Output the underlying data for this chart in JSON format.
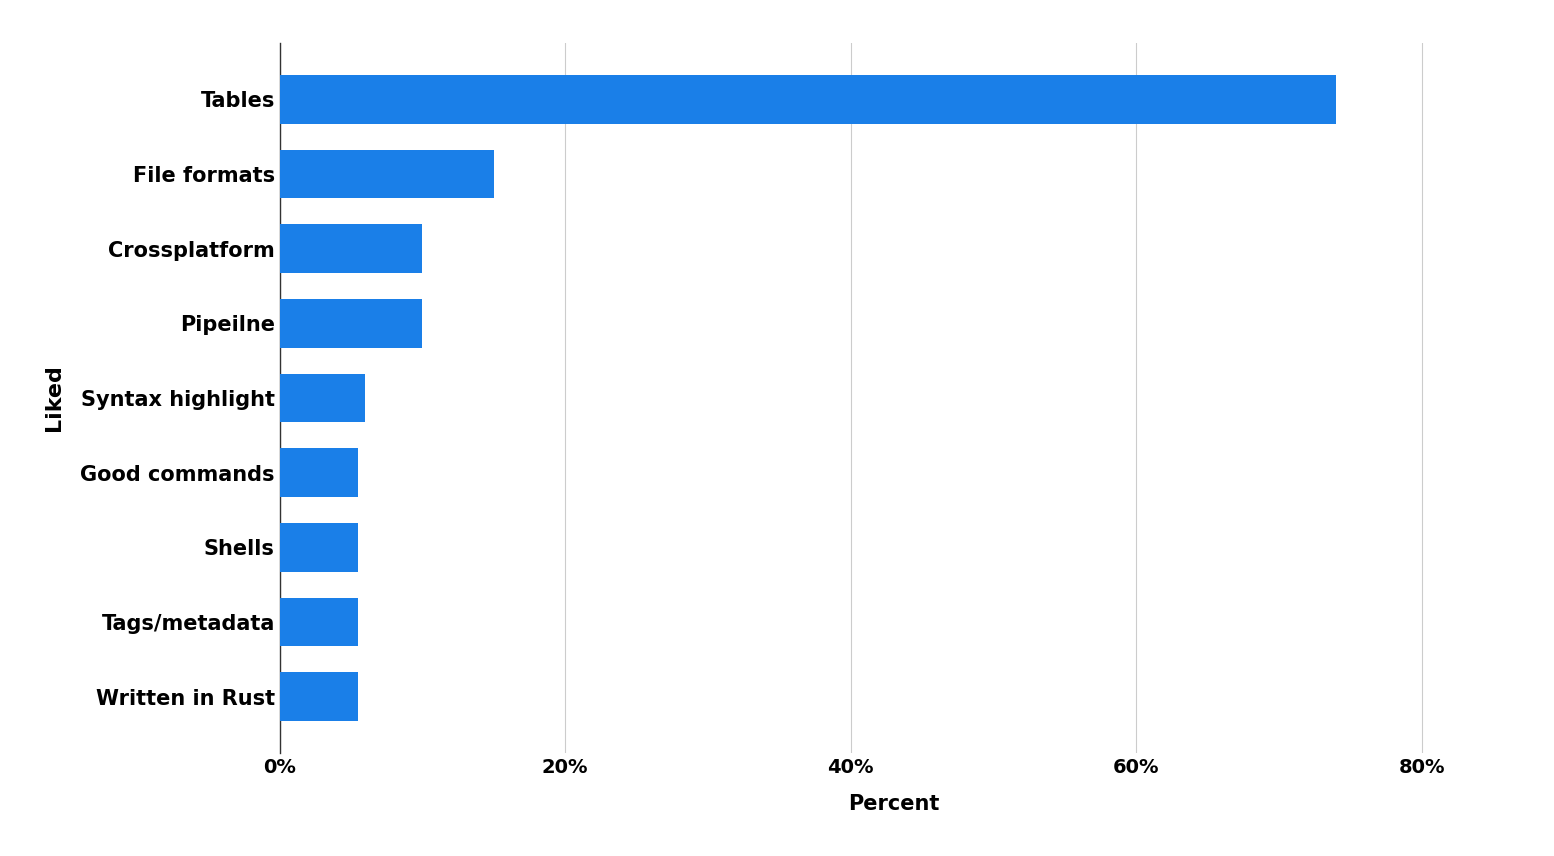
{
  "categories": [
    "Written in Rust",
    "Tags/metadata",
    "Shells",
    "Good commands",
    "Syntax highlight",
    "Pipeilne",
    "Crossplatform",
    "File formats",
    "Tables"
  ],
  "values": [
    5.5,
    5.5,
    5.5,
    5.5,
    6.0,
    10.0,
    10.0,
    15.0,
    74.0
  ],
  "bar_color": "#1a7fe8",
  "xlabel": "Percent",
  "ylabel": "Liked",
  "background_color": "#ffffff",
  "grid_color": "#cccccc",
  "xlim": [
    0,
    86
  ],
  "xtick_values": [
    0,
    20,
    40,
    60,
    80
  ],
  "xtick_labels": [
    "0%",
    "20%",
    "40%",
    "60%",
    "80%"
  ],
  "label_fontsize": 15,
  "tick_fontsize": 14,
  "ylabel_fontsize": 16,
  "bar_height": 0.65
}
